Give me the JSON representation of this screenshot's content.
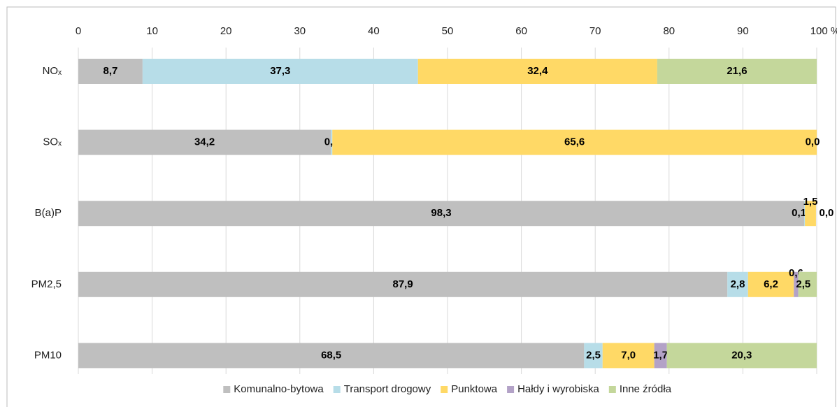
{
  "chart_data": {
    "type": "stacked-bar-horizontal",
    "categories": [
      "NOₓ",
      "SOₓ",
      "B(a)P",
      "PM2,5",
      "PM10"
    ],
    "series": [
      {
        "name": "Komunalno-bytowa",
        "color": "#bfbfbf",
        "values": [
          8.7,
          34.2,
          98.3,
          87.9,
          68.5
        ],
        "value_labels": [
          "8,7",
          "34,2",
          "98,3",
          "87,9",
          "68,5"
        ]
      },
      {
        "name": "Transport drogowy",
        "color": "#b7dde8",
        "values": [
          37.3,
          0.2,
          0.1,
          2.8,
          2.5
        ],
        "value_labels": [
          "37,3",
          "0,2",
          "0,1",
          "2,8",
          "2,5"
        ]
      },
      {
        "name": "Punktowa",
        "color": "#ffd966",
        "values": [
          32.4,
          65.6,
          1.5,
          6.2,
          7.0
        ],
        "value_labels": [
          "32,4",
          "65,6",
          "1,5",
          "6,2",
          "7,0"
        ]
      },
      {
        "name": "Hałdy i wyrobiska",
        "color": "#b3a2c7",
        "values": [
          0,
          0,
          0,
          0.6,
          1.7
        ],
        "value_labels": [
          null,
          null,
          null,
          "0,6",
          "1,7"
        ]
      },
      {
        "name": "Inne źródła",
        "color": "#c4d79b",
        "values": [
          21.6,
          0.0,
          0.0,
          2.5,
          20.3
        ],
        "value_labels": [
          "21,6",
          "0,0",
          "0,0",
          "2,5",
          "20,3"
        ]
      }
    ],
    "xlim": [
      0,
      100
    ],
    "xticks": [
      0,
      10,
      20,
      30,
      40,
      50,
      60,
      70,
      80,
      90,
      {
        "value": 100,
        "label": "100 %"
      }
    ],
    "grid": true,
    "legend": "bottom"
  }
}
